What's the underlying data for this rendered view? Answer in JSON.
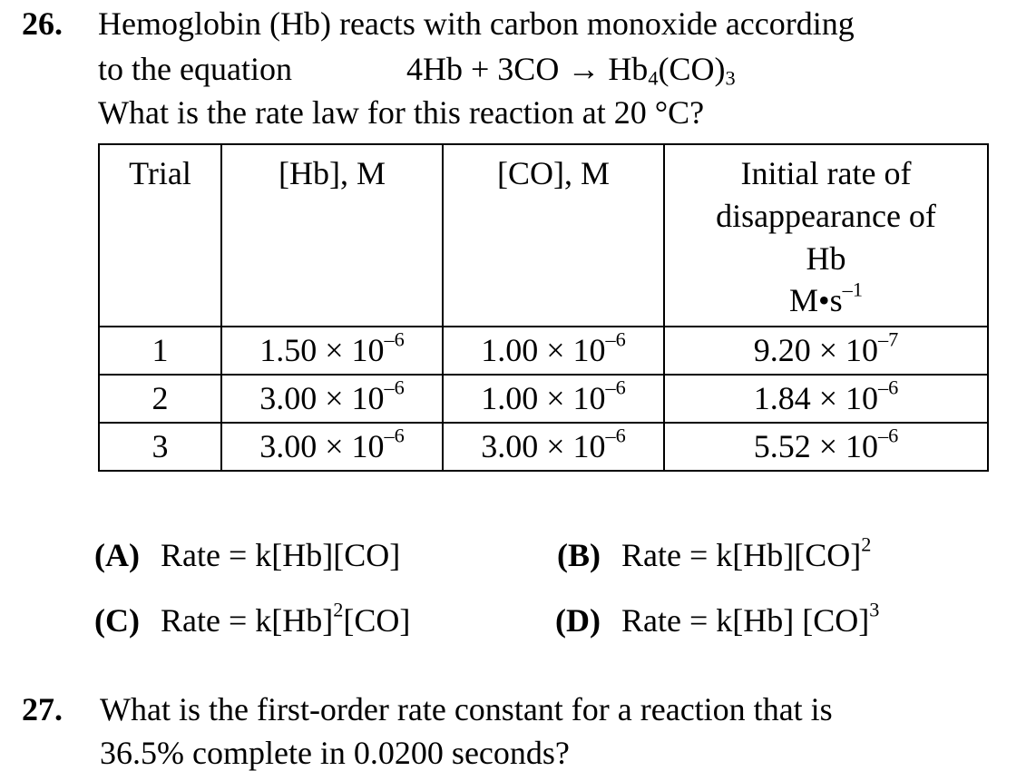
{
  "q26": {
    "number": "26.",
    "line1": "Hemoglobin (Hb) reacts with carbon monoxide according",
    "line2_prefix": "to the equation",
    "equation": {
      "left": "4Hb + 3CO",
      "arrow": "→",
      "product_a": "Hb",
      "product_sub_a": "4",
      "product_b": "(CO)",
      "product_sub_b": "3"
    },
    "line3": "What is the rate law for this reaction at 20 °C?",
    "table": {
      "headers": {
        "trial": "Trial",
        "hb": "[Hb], M",
        "co": "[CO], M",
        "rate_l1": "Initial rate of",
        "rate_l2": "disappearance of",
        "rate_l3": "Hb",
        "rate_unit": "M•s",
        "rate_unit_exp": "–1"
      },
      "rows": [
        {
          "trial": "1",
          "hb": "1.50 × 10",
          "hb_exp": "–6",
          "co": "1.00 × 10",
          "co_exp": "–6",
          "rate": "9.20 × 10",
          "rate_exp": "–7"
        },
        {
          "trial": "2",
          "hb": "3.00 × 10",
          "hb_exp": "–6",
          "co": "1.00 × 10",
          "co_exp": "–6",
          "rate": "1.84 × 10",
          "rate_exp": "–6"
        },
        {
          "trial": "3",
          "hb": "3.00 × 10",
          "hb_exp": "–6",
          "co": "3.00 × 10",
          "co_exp": "–6",
          "rate": "5.52 × 10",
          "rate_exp": "–6"
        }
      ]
    },
    "choices": {
      "A": {
        "letter": "(A)",
        "text": "Rate = k[Hb][CO]"
      },
      "B": {
        "letter": "(B)",
        "text": "Rate = k[Hb][CO]",
        "exp": "2"
      },
      "C": {
        "letter": "(C)",
        "text_a": "Rate = k[Hb]",
        "exp": "2",
        "text_b": "[CO]"
      },
      "D": {
        "letter": "(D)",
        "text": "Rate = k[Hb] [CO]",
        "exp": "3"
      }
    }
  },
  "q27": {
    "number": "27.",
    "line1": "What is the first-order rate constant for a reaction that is",
    "line2": "36.5% complete in 0.0200 seconds?"
  }
}
